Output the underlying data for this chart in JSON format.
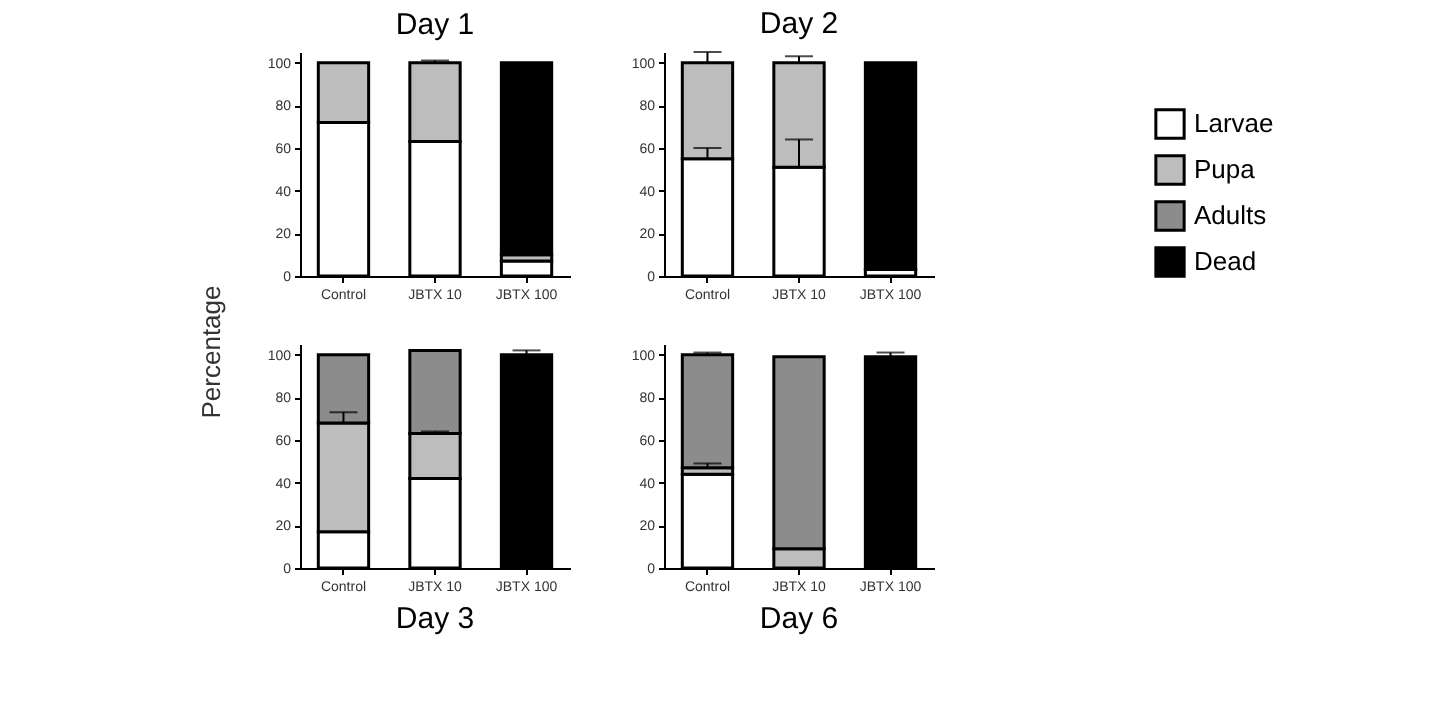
{
  "chart_data": [
    {
      "type": "bar",
      "stacked": true,
      "title": "Day 1",
      "ylabel": "Percentage",
      "categories": [
        "Control",
        "JBTX  10",
        "JBTX  100"
      ],
      "ylim": [
        0,
        105
      ],
      "yticks": [
        0,
        20,
        40,
        60,
        80,
        100
      ],
      "legend": false,
      "series": [
        {
          "color": "#ffffff",
          "values": [
            72,
            63,
            7
          ]
        },
        {
          "color": "#bdbdbd",
          "values": [
            28,
            37,
            3
          ],
          "errors": [
            null,
            1,
            null
          ]
        },
        {
          "color": "#8c8c8c",
          "values": [
            0,
            0,
            0
          ]
        },
        {
          "color": "#000000",
          "values": [
            0,
            0,
            90
          ]
        }
      ]
    },
    {
      "type": "bar",
      "stacked": true,
      "title": "Day 2",
      "categories": [
        "Control",
        "JBTX  10",
        "JBTX  100"
      ],
      "ylim": [
        0,
        105
      ],
      "yticks": [
        0,
        20,
        40,
        60,
        80,
        100
      ],
      "legend": "right",
      "series": [
        {
          "name": "Larvae",
          "color": "#ffffff",
          "values": [
            55,
            51,
            3
          ],
          "errors": [
            5,
            13,
            null
          ]
        },
        {
          "name": "Pupa",
          "color": "#bdbdbd",
          "values": [
            45,
            49,
            0
          ],
          "errors": [
            5,
            3,
            null
          ]
        },
        {
          "name": "Adults",
          "color": "#8c8c8c",
          "values": [
            0,
            0,
            0
          ]
        },
        {
          "name": "Dead",
          "color": "#000000",
          "values": [
            0,
            0,
            97
          ]
        }
      ]
    },
    {
      "type": "bar",
      "stacked": true,
      "title": "Day 3",
      "categories": [
        "Control",
        "JBTX  10",
        "JBTX  100"
      ],
      "ylim": [
        0,
        105
      ],
      "yticks": [
        0,
        20,
        40,
        60,
        80,
        100
      ],
      "legend": false,
      "series": [
        {
          "color": "#ffffff",
          "values": [
            17,
            42,
            0
          ]
        },
        {
          "color": "#bdbdbd",
          "values": [
            51,
            21,
            0
          ],
          "errors": [
            5,
            1,
            null
          ]
        },
        {
          "color": "#8c8c8c",
          "values": [
            32,
            39,
            0
          ]
        },
        {
          "color": "#000000",
          "values": [
            0,
            0,
            100
          ],
          "errors": [
            null,
            null,
            2
          ]
        }
      ]
    },
    {
      "type": "bar",
      "stacked": true,
      "title": "Day 6",
      "categories": [
        "Control",
        "JBTX  10",
        "JBTX  100"
      ],
      "ylim": [
        0,
        105
      ],
      "yticks": [
        0,
        20,
        40,
        60,
        80,
        100
      ],
      "legend": false,
      "series": [
        {
          "color": "#ffffff",
          "values": [
            44,
            0,
            0
          ]
        },
        {
          "color": "#bdbdbd",
          "values": [
            3,
            9,
            0
          ],
          "errors": [
            2,
            null,
            null
          ]
        },
        {
          "color": "#8c8c8c",
          "values": [
            53,
            90,
            0
          ],
          "errors": [
            1,
            null,
            null
          ]
        },
        {
          "color": "#000000",
          "values": [
            0,
            0,
            99
          ],
          "errors": [
            null,
            null,
            2
          ]
        }
      ]
    }
  ]
}
